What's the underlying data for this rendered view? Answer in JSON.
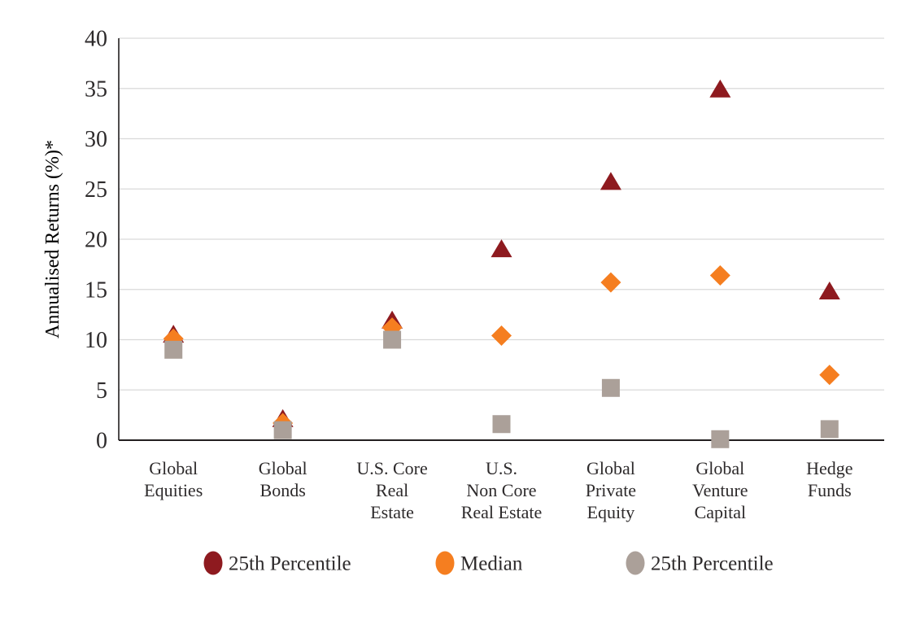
{
  "chart_data": {
    "type": "scatter",
    "title": "",
    "ylabel": "Annualised Returns (%)*",
    "xlabel": "",
    "ylim": [
      0,
      40
    ],
    "yticks": [
      0,
      5,
      10,
      15,
      20,
      25,
      30,
      35,
      40
    ],
    "grid": "horizontal",
    "legend_position": "bottom",
    "categories": [
      {
        "label": "Global Equities",
        "lines": [
          "Global",
          "Equities"
        ]
      },
      {
        "label": "Global Bonds",
        "lines": [
          "Global",
          "Bonds"
        ]
      },
      {
        "label": "U.S. Core Real Estate",
        "lines": [
          "U.S. Core",
          "Real",
          "Estate"
        ]
      },
      {
        "label": "U.S. Non Core Real Estate",
        "lines": [
          "U.S.",
          "Non Core",
          "Real Estate"
        ]
      },
      {
        "label": "Global Private Equity",
        "lines": [
          "Global",
          "Private",
          "Equity"
        ]
      },
      {
        "label": "Global Venture Capital",
        "lines": [
          "Global",
          "Venture",
          "Capital"
        ]
      },
      {
        "label": "Hedge Funds",
        "lines": [
          "Hedge",
          "Funds"
        ]
      }
    ],
    "series": [
      {
        "name": "25th Percentile",
        "marker": "triangle",
        "color": "#8E1A1F",
        "values": [
          10.6,
          2.2,
          12.0,
          19.1,
          25.8,
          35.0,
          14.9
        ]
      },
      {
        "name": "Median",
        "marker": "diamond",
        "color": "#F57E20",
        "values": [
          10.1,
          1.7,
          11.2,
          10.4,
          15.7,
          16.4,
          6.5
        ]
      },
      {
        "name": "25th Percentile",
        "marker": "square",
        "color": "#ABA099",
        "values": [
          9.0,
          1.0,
          10.0,
          1.6,
          5.2,
          0.1,
          1.1
        ]
      }
    ],
    "legend": [
      {
        "label": "25th Percentile",
        "color": "#8E1A1F"
      },
      {
        "label": "Median",
        "color": "#F57E20"
      },
      {
        "label": "25th Percentile",
        "color": "#ABA099"
      }
    ]
  },
  "style": {
    "axis_color": "#231f20",
    "grid_color": "#d9d9d9",
    "text_color": "#2d2a2b"
  }
}
